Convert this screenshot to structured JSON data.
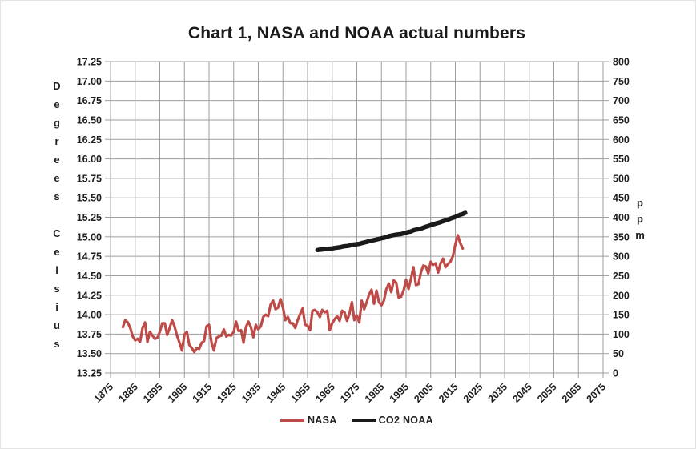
{
  "title": "Chart 1, NASA and NOAA actual numbers",
  "colors": {
    "nasa_line": "#BE4B48",
    "co2_line": "#1A1A1A",
    "gridline": "#9E9E9E",
    "axis_text": "#1F1F1F",
    "title_text": "#1A1A1A"
  },
  "chart_data": {
    "type": "line",
    "title": "Chart 1, NASA and NOAA actual numbers",
    "grid": true,
    "legend_position": "bottom",
    "left_axis": {
      "label": "Degrees Celsius",
      "min": 13.25,
      "max": 17.25,
      "step": 0.25,
      "tick_format": "2dp"
    },
    "right_axis": {
      "label": "ppm",
      "min": 0,
      "max": 800,
      "step": 50,
      "tick_format": "int"
    },
    "x_axis": {
      "min": 1875,
      "max": 2075,
      "step": 10,
      "label_rotation": -45
    },
    "series": [
      {
        "name": "NASA",
        "axis": "left",
        "color": "#BE4B48",
        "stroke_width": 3.2,
        "x_start": 1880,
        "x_step": 1,
        "values": [
          13.84,
          13.93,
          13.9,
          13.83,
          13.72,
          13.67,
          13.69,
          13.65,
          13.83,
          13.9,
          13.65,
          13.78,
          13.73,
          13.69,
          13.7,
          13.78,
          13.89,
          13.89,
          13.74,
          13.83,
          13.93,
          13.85,
          13.73,
          13.64,
          13.54,
          13.74,
          13.78,
          13.61,
          13.57,
          13.52,
          13.57,
          13.56,
          13.64,
          13.66,
          13.85,
          13.87,
          13.64,
          13.54,
          13.7,
          13.72,
          13.73,
          13.81,
          13.72,
          13.74,
          13.73,
          13.78,
          13.91,
          13.79,
          13.8,
          13.64,
          13.84,
          13.91,
          13.84,
          13.71,
          13.87,
          13.81,
          13.85,
          13.97,
          14.0,
          13.98,
          14.13,
          14.18,
          14.07,
          14.09,
          14.2,
          14.09,
          13.93,
          13.97,
          13.89,
          13.89,
          13.83,
          13.93,
          14.01,
          14.08,
          13.87,
          13.86,
          13.8,
          14.05,
          14.06,
          14.03,
          13.97,
          14.06,
          14.03,
          14.05,
          13.8,
          13.89,
          13.94,
          13.98,
          13.92,
          14.05,
          14.03,
          13.92,
          14.01,
          14.16,
          13.93,
          13.99,
          13.9,
          14.18,
          14.07,
          14.16,
          14.26,
          14.32,
          14.14,
          14.31,
          14.16,
          14.12,
          14.18,
          14.33,
          14.4,
          14.29,
          14.44,
          14.41,
          14.22,
          14.23,
          14.31,
          14.45,
          14.33,
          14.46,
          14.61,
          14.38,
          14.39,
          14.54,
          14.63,
          14.62,
          14.53,
          14.68,
          14.64,
          14.66,
          14.54,
          14.66,
          14.72,
          14.61,
          14.65,
          14.68,
          14.75,
          14.9,
          15.02,
          14.92,
          14.85
        ]
      },
      {
        "name": "CO2 NOAA",
        "axis": "right",
        "color": "#1A1A1A",
        "stroke_width": 5.5,
        "x_start": 1959,
        "x_step": 1,
        "values": [
          316.0,
          316.9,
          317.6,
          318.5,
          319.0,
          319.6,
          320.0,
          321.4,
          322.2,
          323.1,
          324.6,
          325.7,
          326.3,
          327.5,
          329.7,
          330.2,
          331.1,
          332.0,
          333.8,
          335.4,
          336.8,
          338.8,
          340.1,
          341.5,
          343.1,
          344.7,
          346.1,
          347.4,
          349.2,
          351.6,
          353.1,
          354.4,
          355.6,
          356.5,
          357.1,
          358.8,
          360.8,
          362.6,
          363.7,
          366.7,
          368.4,
          369.6,
          371.1,
          373.3,
          375.8,
          377.5,
          379.8,
          381.9,
          383.8,
          385.6,
          387.4,
          389.9,
          391.7,
          393.9,
          396.5,
          398.7,
          400.8,
          404.2,
          406.6,
          408.5,
          411.4
        ]
      }
    ]
  },
  "legend": {
    "items": [
      {
        "label": "NASA"
      },
      {
        "label": "CO2 NOAA"
      }
    ]
  }
}
